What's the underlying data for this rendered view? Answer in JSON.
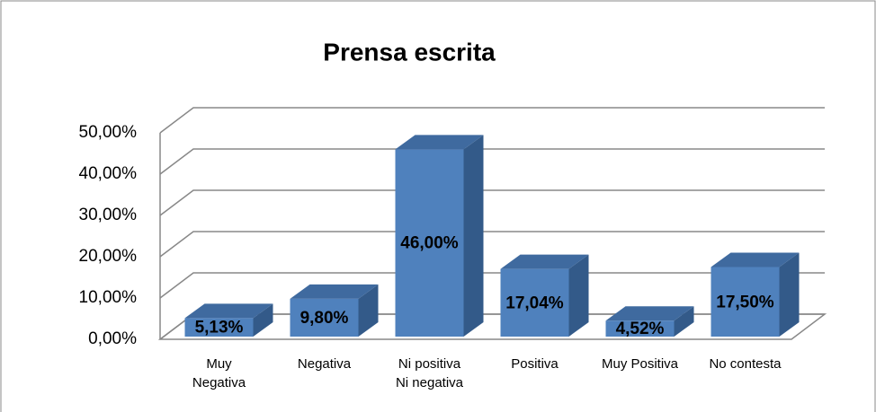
{
  "chart_data": {
    "type": "bar3d",
    "title": "Prensa escrita",
    "categories": [
      "Muy\nNegativa",
      "Negativa",
      "Ni positiva\nNi negativa",
      "Positiva",
      "Muy Positiva",
      "No contesta"
    ],
    "values": [
      5.13,
      9.8,
      46.0,
      17.04,
      4.52,
      17.5
    ],
    "value_labels": [
      "5,13%",
      "9,80%",
      "46,00%",
      "17,04%",
      "4,52%",
      "17,50%"
    ],
    "color": "#4f81bd",
    "ylim": [
      0,
      50
    ],
    "yticks": [
      {
        "value": 0,
        "label": "0,00%"
      },
      {
        "value": 10,
        "label": "10,00%"
      },
      {
        "value": 20,
        "label": "20,00%"
      },
      {
        "value": 30,
        "label": "30,00%"
      },
      {
        "value": 40,
        "label": "40,00%"
      },
      {
        "value": 50,
        "label": "50,00%"
      }
    ],
    "grid": true
  }
}
